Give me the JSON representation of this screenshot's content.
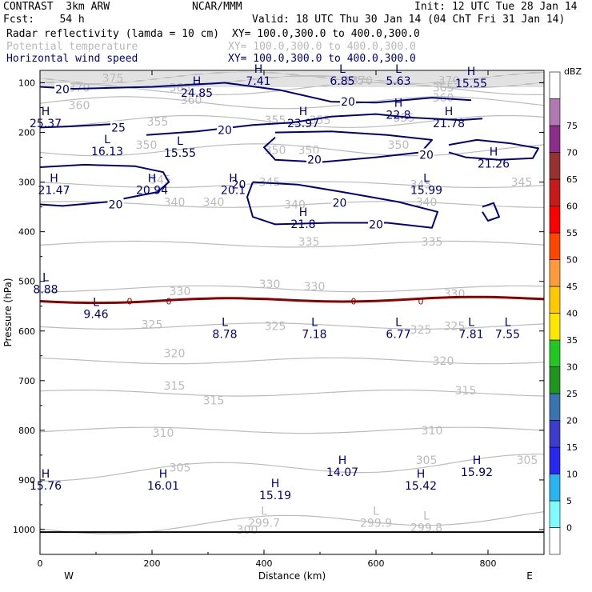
{
  "header": {
    "left1": "CONTRAST  3km ARW",
    "center1": "NCAR/MMM",
    "right1": "Init: 12 UTC Tue 28 Jan 14",
    "left2": "Fcst:    54 h",
    "right2": "Valid: 18 UTC Thu 30 Jan 14 (04 ChT Fri 31 Jan 14)",
    "fields": [
      {
        "name": "Radar reflectivity (lamda = 10 cm)",
        "xy": "XY= 100.0,300.0 to 400.0,300.0",
        "color": "#000000"
      },
      {
        "name": "Potential temperature",
        "xy": "XY= 100.0,300.0 to 400.0,300.0",
        "color": "#b8b8b8"
      },
      {
        "name": "Horizontal wind speed",
        "xy": "XY= 100.0,300.0 to 400.0,300.0",
        "color": "#00007a"
      }
    ]
  },
  "chart_data": {
    "type": "contour cross-section",
    "xlabel": "Distance (km)",
    "ylabel": "Pressure (hPa)",
    "xlim": [
      0,
      900
    ],
    "ylim": [
      1050,
      75
    ],
    "xticks": [
      "0",
      "200",
      "400",
      "600",
      "800"
    ],
    "yticks": [
      "100",
      "200",
      "300",
      "400",
      "500",
      "600",
      "700",
      "800",
      "900",
      "1000"
    ],
    "x_end_labels": {
      "left": "W",
      "right": "E"
    },
    "colorbar": {
      "unit": "dBZ",
      "levels": [
        "0",
        "5",
        "10",
        "15",
        "20",
        "25",
        "30",
        "35",
        "40",
        "45",
        "50",
        "55",
        "60",
        "65",
        "70",
        "75"
      ],
      "colors": [
        "#ffffff",
        "#7ffbff",
        "#28b4f0",
        "#2828f0",
        "#3c3ccd",
        "#3a74b0",
        "#1e961e",
        "#22c822",
        "#ffe600",
        "#ffc800",
        "#ff9b3c",
        "#ff4600",
        "#ff0000",
        "#c81a1a",
        "#963232",
        "#8c2d8c",
        "#b278b4",
        "#ffffff"
      ]
    },
    "theta_contours": [
      300,
      305,
      310,
      315,
      320,
      325,
      330,
      335,
      340,
      345,
      350,
      355,
      360,
      365,
      370,
      375
    ],
    "theta_labels": [
      {
        "x": 70,
        "p": 110,
        "v": "370"
      },
      {
        "x": 130,
        "p": 90,
        "v": "375"
      },
      {
        "x": 250,
        "p": 110,
        "v": "365"
      },
      {
        "x": 270,
        "p": 135,
        "v": "360"
      },
      {
        "x": 560,
        "p": 95,
        "v": "375"
      },
      {
        "x": 575,
        "p": 95,
        "v": "370"
      },
      {
        "x": 730,
        "p": 95,
        "v": "370"
      },
      {
        "x": 720,
        "p": 110,
        "v": "365"
      },
      {
        "x": 720,
        "p": 130,
        "v": "360"
      },
      {
        "x": 70,
        "p": 145,
        "v": "360"
      },
      {
        "x": 210,
        "p": 178,
        "v": "355"
      },
      {
        "x": 420,
        "p": 175,
        "v": "355"
      },
      {
        "x": 500,
        "p": 175,
        "v": "355"
      },
      {
        "x": 650,
        "p": 170,
        "v": "355"
      },
      {
        "x": 190,
        "p": 225,
        "v": "350"
      },
      {
        "x": 420,
        "p": 235,
        "v": "350"
      },
      {
        "x": 480,
        "p": 235,
        "v": "350"
      },
      {
        "x": 640,
        "p": 225,
        "v": "350"
      },
      {
        "x": 215,
        "p": 295,
        "v": "345"
      },
      {
        "x": 410,
        "p": 300,
        "v": "345"
      },
      {
        "x": 680,
        "p": 305,
        "v": "345"
      },
      {
        "x": 860,
        "p": 300,
        "v": "345"
      },
      {
        "x": 240,
        "p": 340,
        "v": "340"
      },
      {
        "x": 310,
        "p": 340,
        "v": "340"
      },
      {
        "x": 455,
        "p": 345,
        "v": "340"
      },
      {
        "x": 690,
        "p": 340,
        "v": "340"
      },
      {
        "x": 480,
        "p": 420,
        "v": "335"
      },
      {
        "x": 700,
        "p": 420,
        "v": "335"
      },
      {
        "x": 250,
        "p": 520,
        "v": "330"
      },
      {
        "x": 490,
        "p": 510,
        "v": "330"
      },
      {
        "x": 740,
        "p": 525,
        "v": "330"
      },
      {
        "x": 410,
        "p": 505,
        "v": "330"
      },
      {
        "x": 200,
        "p": 587,
        "v": "325"
      },
      {
        "x": 420,
        "p": 590,
        "v": "325"
      },
      {
        "x": 680,
        "p": 597,
        "v": "325"
      },
      {
        "x": 740,
        "p": 590,
        "v": "325"
      },
      {
        "x": 240,
        "p": 645,
        "v": "320"
      },
      {
        "x": 720,
        "p": 660,
        "v": "320"
      },
      {
        "x": 240,
        "p": 710,
        "v": "315"
      },
      {
        "x": 760,
        "p": 720,
        "v": "315"
      },
      {
        "x": 310,
        "p": 740,
        "v": "315"
      },
      {
        "x": 220,
        "p": 805,
        "v": "310"
      },
      {
        "x": 700,
        "p": 800,
        "v": "310"
      },
      {
        "x": 250,
        "p": 875,
        "v": "305"
      },
      {
        "x": 690,
        "p": 860,
        "v": "305"
      },
      {
        "x": 870,
        "p": 860,
        "v": "305"
      },
      {
        "x": 370,
        "p": 1000,
        "v": "300"
      }
    ],
    "wind_contour_level": "20",
    "wind_labels": [
      {
        "x": 40,
        "p": 113,
        "v": "20"
      },
      {
        "x": 550,
        "p": 138,
        "v": "20"
      },
      {
        "x": 140,
        "p": 190,
        "v": "25"
      },
      {
        "x": 330,
        "p": 195,
        "v": "20"
      },
      {
        "x": 490,
        "p": 255,
        "v": "20"
      },
      {
        "x": 690,
        "p": 245,
        "v": "20"
      },
      {
        "x": 135,
        "p": 345,
        "v": "20"
      },
      {
        "x": 355,
        "p": 305,
        "v": "20"
      },
      {
        "x": 535,
        "p": 342,
        "v": "20"
      },
      {
        "x": 600,
        "p": 385,
        "v": "20"
      }
    ],
    "hl_labels": [
      {
        "x": 390,
        "p": 80,
        "t": "H",
        "v": "7.41"
      },
      {
        "x": 540,
        "p": 80,
        "t": "L",
        "v": "6.85"
      },
      {
        "x": 640,
        "p": 80,
        "t": "L",
        "v": "5.63"
      },
      {
        "x": 770,
        "p": 85,
        "t": "H",
        "v": "15.55"
      },
      {
        "x": 280,
        "p": 104,
        "t": "H",
        "v": "24.85"
      },
      {
        "x": 10,
        "p": 165,
        "t": "H",
        "v": "25.37"
      },
      {
        "x": 470,
        "p": 165,
        "t": "H",
        "v": "23.97"
      },
      {
        "x": 640,
        "p": 148,
        "t": "H",
        "v": "22.8"
      },
      {
        "x": 730,
        "p": 165,
        "t": "H",
        "v": "21.78"
      },
      {
        "x": 120,
        "p": 222,
        "t": "L",
        "v": "16.13"
      },
      {
        "x": 250,
        "p": 225,
        "t": "L",
        "v": "15.55"
      },
      {
        "x": 810,
        "p": 247,
        "t": "H",
        "v": "21.26"
      },
      {
        "x": 25,
        "p": 300,
        "t": "H",
        "v": "21.47"
      },
      {
        "x": 200,
        "p": 300,
        "t": "H",
        "v": "20.94"
      },
      {
        "x": 345,
        "p": 300,
        "t": "H",
        "v": "20.1"
      },
      {
        "x": 690,
        "p": 300,
        "t": "L",
        "v": "15.99"
      },
      {
        "x": 470,
        "p": 368,
        "t": "H",
        "v": "21.8"
      },
      {
        "x": 10,
        "p": 500,
        "t": "L",
        "v": "8.88"
      },
      {
        "x": 100,
        "p": 550,
        "t": "L",
        "v": "9.46"
      },
      {
        "x": 330,
        "p": 590,
        "t": "L",
        "v": "8.78"
      },
      {
        "x": 490,
        "p": 590,
        "t": "L",
        "v": "7.18"
      },
      {
        "x": 640,
        "p": 590,
        "t": "L",
        "v": "6.77"
      },
      {
        "x": 770,
        "p": 590,
        "t": "L",
        "v": "7.81"
      },
      {
        "x": 835,
        "p": 590,
        "t": "L",
        "v": "7.55"
      },
      {
        "x": 10,
        "p": 895,
        "t": "H",
        "v": "15.76"
      },
      {
        "x": 220,
        "p": 895,
        "t": "H",
        "v": "16.01"
      },
      {
        "x": 540,
        "p": 868,
        "t": "H",
        "v": "14.07"
      },
      {
        "x": 780,
        "p": 868,
        "t": "H",
        "v": "15.92"
      },
      {
        "x": 420,
        "p": 915,
        "t": "H",
        "v": "15.19"
      },
      {
        "x": 680,
        "p": 895,
        "t": "H",
        "v": "15.42"
      },
      {
        "x": 400,
        "p": 970,
        "t": "L",
        "v": "299.7"
      },
      {
        "x": 600,
        "p": 970,
        "t": "L",
        "v": "299.9"
      },
      {
        "x": 690,
        "p": 980,
        "t": "L",
        "v": "299.8"
      }
    ],
    "freezing_level": {
      "p": 540,
      "label": "0",
      "color": "#8b0000"
    },
    "colors": {
      "theta": "#bbbbbb",
      "wind": "#00007a",
      "text": "#000000"
    }
  }
}
